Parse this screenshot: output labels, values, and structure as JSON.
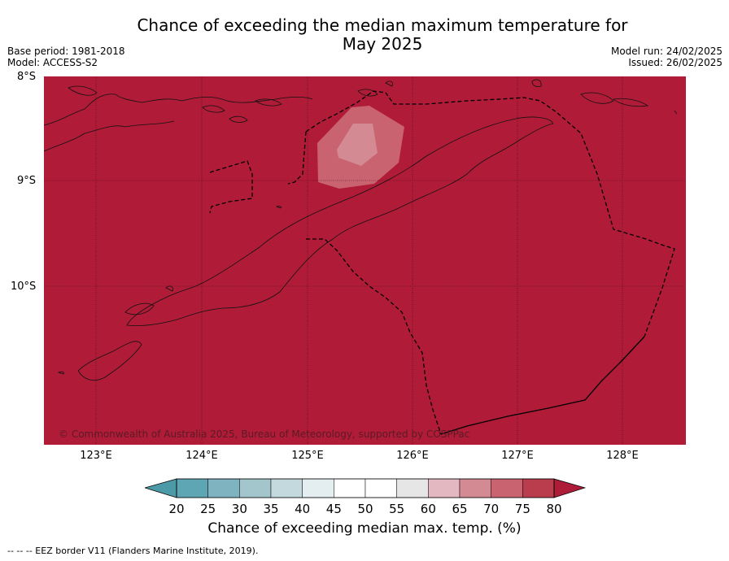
{
  "title_line1": "Chance of exceeding the median maximum temperature for",
  "title_line2": "May 2025",
  "base_period": "Base period: 1981-2018",
  "model": "Model: ACCESS-S2",
  "model_run": "Model run: 24/02/2025",
  "issued": "Issued: 26/02/2025",
  "lat_labels": [
    "8°S",
    "9°S",
    "10°S"
  ],
  "lon_labels": [
    "123°E",
    "124°E",
    "125°E",
    "126°E",
    "127°E",
    "128°E"
  ],
  "copyright": "© Commonwealth of Australia 2025, Bureau of Meteorology, supported by COSPPac",
  "colorbar": {
    "ticks": [
      "20",
      "25",
      "30",
      "35",
      "40",
      "45",
      "50",
      "55",
      "60",
      "65",
      "70",
      "75",
      "80"
    ],
    "colors": [
      "#5fa6b4",
      "#7fb3bf",
      "#a2c6cc",
      "#c4d9dd",
      "#e4eef0",
      "#ffffff",
      "#ffffff",
      "#e7e6e6",
      "#e3b8c0",
      "#d38a93",
      "#c8636f",
      "#ba3d4d"
    ],
    "under_color": "#4c9aa8",
    "over_color": "#ad1c38",
    "title": "Chance of exceeding median max. temp. (%)"
  },
  "colors": {
    "map_fill": "#b01c38",
    "patch_outer": "#c8636f",
    "patch_inner": "#d38a93"
  },
  "footer": "--  --  -- EEZ border V11 (Flanders Marine Institute, 2019)."
}
